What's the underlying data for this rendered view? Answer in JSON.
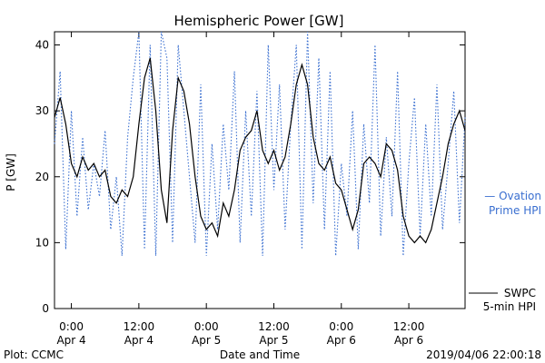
{
  "chart_data": {
    "type": "line",
    "title": "Hemispheric Power [GW]",
    "xlabel": "Date and Time",
    "ylabel": "P [GW]",
    "ylim": [
      0,
      42
    ],
    "yticks": [
      0,
      10,
      20,
      30,
      40
    ],
    "xlim": [
      "2019-04-03 21:00",
      "2019-04-06 22:00"
    ],
    "xticks": [
      {
        "t": "2019-04-04 00:00",
        "label": [
          "0:00",
          "Apr 4"
        ]
      },
      {
        "t": "2019-04-04 12:00",
        "label": [
          "12:00",
          "Apr 4"
        ]
      },
      {
        "t": "2019-04-05 00:00",
        "label": [
          "0:00",
          "Apr 5"
        ]
      },
      {
        "t": "2019-04-05 12:00",
        "label": [
          "12:00",
          "Apr 5"
        ]
      },
      {
        "t": "2019-04-06 00:00",
        "label": [
          "0:00",
          "Apr 6"
        ]
      },
      {
        "t": "2019-04-06 12:00",
        "label": [
          "12:00",
          "Apr 6"
        ]
      }
    ],
    "series": [
      {
        "name": "SWPC 5-min HPI",
        "legend": [
          "SWPC",
          "5-min HPI"
        ],
        "color": "#000000",
        "style": "solid",
        "x": [
          "2019-04-03 21:00",
          "2019-04-03 22:00",
          "2019-04-03 23:00",
          "2019-04-04 00:00",
          "2019-04-04 01:00",
          "2019-04-04 02:00",
          "2019-04-04 03:00",
          "2019-04-04 04:00",
          "2019-04-04 05:00",
          "2019-04-04 06:00",
          "2019-04-04 07:00",
          "2019-04-04 08:00",
          "2019-04-04 09:00",
          "2019-04-04 10:00",
          "2019-04-04 11:00",
          "2019-04-04 12:00",
          "2019-04-04 13:00",
          "2019-04-04 14:00",
          "2019-04-04 15:00",
          "2019-04-04 16:00",
          "2019-04-04 17:00",
          "2019-04-04 18:00",
          "2019-04-04 19:00",
          "2019-04-04 20:00",
          "2019-04-04 21:00",
          "2019-04-04 22:00",
          "2019-04-04 23:00",
          "2019-04-05 00:00",
          "2019-04-05 01:00",
          "2019-04-05 02:00",
          "2019-04-05 03:00",
          "2019-04-05 04:00",
          "2019-04-05 05:00",
          "2019-04-05 06:00",
          "2019-04-05 07:00",
          "2019-04-05 08:00",
          "2019-04-05 09:00",
          "2019-04-05 10:00",
          "2019-04-05 11:00",
          "2019-04-05 12:00",
          "2019-04-05 13:00",
          "2019-04-05 14:00",
          "2019-04-05 15:00",
          "2019-04-05 16:00",
          "2019-04-05 17:00",
          "2019-04-05 18:00",
          "2019-04-05 19:00",
          "2019-04-05 20:00",
          "2019-04-05 21:00",
          "2019-04-05 22:00",
          "2019-04-05 23:00",
          "2019-04-06 00:00",
          "2019-04-06 01:00",
          "2019-04-06 02:00",
          "2019-04-06 03:00",
          "2019-04-06 04:00",
          "2019-04-06 05:00",
          "2019-04-06 06:00",
          "2019-04-06 07:00",
          "2019-04-06 08:00",
          "2019-04-06 09:00",
          "2019-04-06 10:00",
          "2019-04-06 11:00",
          "2019-04-06 12:00",
          "2019-04-06 13:00",
          "2019-04-06 14:00",
          "2019-04-06 15:00",
          "2019-04-06 16:00",
          "2019-04-06 17:00",
          "2019-04-06 18:00",
          "2019-04-06 19:00",
          "2019-04-06 20:00",
          "2019-04-06 21:00",
          "2019-04-06 22:00"
        ],
        "values": [
          29,
          32,
          28,
          22,
          20,
          23,
          21,
          22,
          20,
          21,
          17,
          16,
          18,
          17,
          20,
          28,
          35,
          38,
          30,
          18,
          13,
          27,
          35,
          33,
          28,
          20,
          14,
          12,
          13,
          11,
          16,
          14,
          18,
          24,
          26,
          27,
          30,
          24,
          22,
          24,
          21,
          23,
          28,
          34,
          37,
          34,
          26,
          22,
          21,
          23,
          19,
          18,
          15,
          12,
          15,
          22,
          23,
          22,
          20,
          25,
          24,
          21,
          14,
          11,
          10,
          11,
          10,
          12,
          16,
          20,
          25,
          28,
          30,
          27
        ]
      },
      {
        "name": "Ovation Prime HPI",
        "legend": [
          "— Ovation",
          "Prime HPI"
        ],
        "color": "#3a6fd0",
        "style": "dotted",
        "x": [
          "2019-04-03 21:00",
          "2019-04-03 22:00",
          "2019-04-03 23:00",
          "2019-04-04 00:00",
          "2019-04-04 01:00",
          "2019-04-04 02:00",
          "2019-04-04 03:00",
          "2019-04-04 04:00",
          "2019-04-04 05:00",
          "2019-04-04 06:00",
          "2019-04-04 07:00",
          "2019-04-04 08:00",
          "2019-04-04 09:00",
          "2019-04-04 10:00",
          "2019-04-04 11:00",
          "2019-04-04 12:00",
          "2019-04-04 13:00",
          "2019-04-04 14:00",
          "2019-04-04 15:00",
          "2019-04-04 16:00",
          "2019-04-04 17:00",
          "2019-04-04 18:00",
          "2019-04-04 19:00",
          "2019-04-04 20:00",
          "2019-04-04 21:00",
          "2019-04-04 22:00",
          "2019-04-04 23:00",
          "2019-04-05 00:00",
          "2019-04-05 01:00",
          "2019-04-05 02:00",
          "2019-04-05 03:00",
          "2019-04-05 04:00",
          "2019-04-05 05:00",
          "2019-04-05 06:00",
          "2019-04-05 07:00",
          "2019-04-05 08:00",
          "2019-04-05 09:00",
          "2019-04-05 10:00",
          "2019-04-05 11:00",
          "2019-04-05 12:00",
          "2019-04-05 13:00",
          "2019-04-05 14:00",
          "2019-04-05 15:00",
          "2019-04-05 16:00",
          "2019-04-05 17:00",
          "2019-04-05 18:00",
          "2019-04-05 19:00",
          "2019-04-05 20:00",
          "2019-04-05 21:00",
          "2019-04-05 22:00",
          "2019-04-05 23:00",
          "2019-04-06 00:00",
          "2019-04-06 01:00",
          "2019-04-06 02:00",
          "2019-04-06 03:00",
          "2019-04-06 04:00",
          "2019-04-06 05:00",
          "2019-04-06 06:00",
          "2019-04-06 07:00",
          "2019-04-06 08:00",
          "2019-04-06 09:00",
          "2019-04-06 10:00",
          "2019-04-06 11:00",
          "2019-04-06 12:00",
          "2019-04-06 13:00",
          "2019-04-06 14:00",
          "2019-04-06 15:00",
          "2019-04-06 16:00",
          "2019-04-06 17:00",
          "2019-04-06 18:00",
          "2019-04-06 19:00",
          "2019-04-06 20:00",
          "2019-04-06 21:00",
          "2019-04-06 22:00"
        ],
        "values": [
          25,
          36,
          9,
          30,
          14,
          26,
          15,
          22,
          17,
          27,
          12,
          20,
          8,
          26,
          35,
          42,
          9,
          40,
          8,
          42,
          38,
          10,
          40,
          30,
          20,
          10,
          34,
          8,
          25,
          12,
          28,
          18,
          36,
          10,
          30,
          14,
          33,
          8,
          40,
          18,
          34,
          12,
          28,
          40,
          9,
          42,
          16,
          38,
          12,
          36,
          8,
          22,
          14,
          30,
          9,
          28,
          16,
          40,
          11,
          26,
          14,
          36,
          8,
          22,
          32,
          11,
          28,
          14,
          34,
          12,
          22,
          33,
          13,
          29
        ]
      }
    ],
    "grid": false,
    "legend_position": "right"
  },
  "footer": {
    "left": "Plot: CCMC",
    "right": "2019/04/06 22:00:18"
  }
}
